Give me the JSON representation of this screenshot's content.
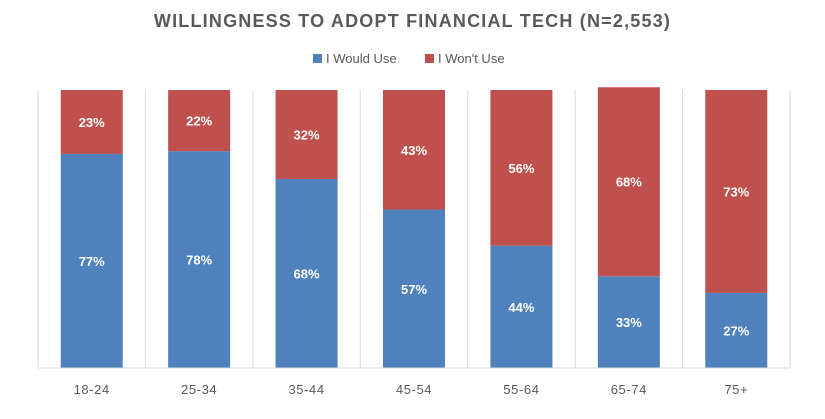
{
  "chart_data": {
    "type": "bar",
    "stacked": true,
    "title": "WILLINGNESS TO ADOPT FINANCIAL TECH (N=2,553)",
    "xlabel": "",
    "ylabel": "",
    "ylim": [
      0,
      100
    ],
    "grid": "vertical",
    "legend_position": "top",
    "categories": [
      "18-24",
      "25-34",
      "35-44",
      "45-54",
      "55-64",
      "65-74",
      "75+"
    ],
    "series": [
      {
        "name": "I Would Use",
        "color": "#4f81bd",
        "values": [
          77,
          78,
          68,
          57,
          44,
          33,
          27
        ],
        "labels": [
          "77%",
          "78%",
          "68%",
          "57%",
          "44%",
          "33%",
          "27%"
        ]
      },
      {
        "name": "I Won't Use",
        "color": "#c0504d",
        "values": [
          23,
          22,
          32,
          43,
          56,
          68,
          73
        ],
        "labels": [
          "23%",
          "22%",
          "32%",
          "43%",
          "56%",
          "68%",
          "73%"
        ]
      }
    ]
  }
}
